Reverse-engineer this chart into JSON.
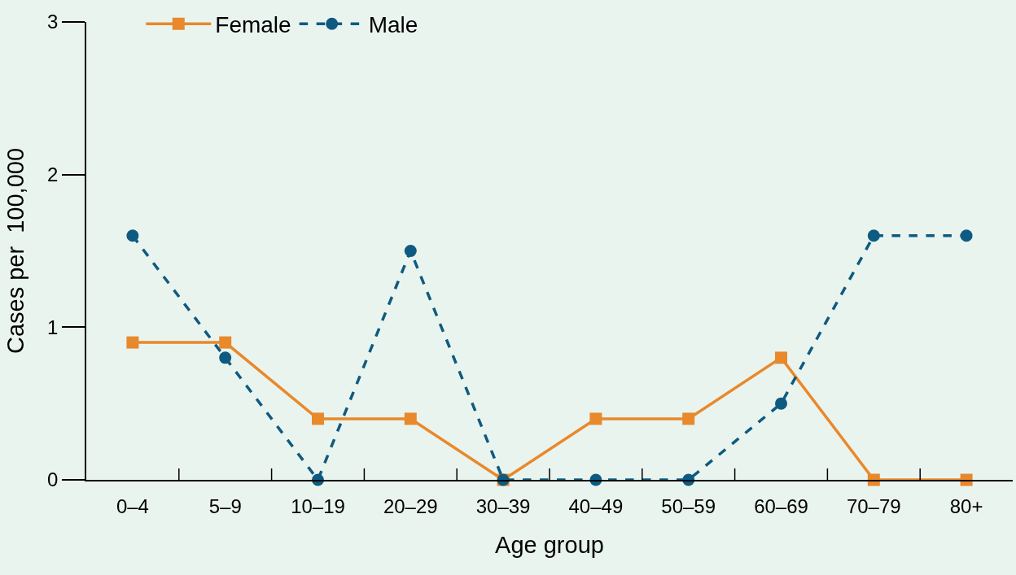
{
  "chart_data": {
    "type": "line",
    "xlabel": "Age group",
    "ylabel": "Cases per  100,000",
    "categories": [
      "0–4",
      "5–9",
      "10–19",
      "20–29",
      "30–39",
      "40–49",
      "50–59",
      "60–69",
      "70–79",
      "80+"
    ],
    "series": [
      {
        "name": "Female",
        "color": "#e8892b",
        "marker": "square",
        "line_style": "solid",
        "values": [
          0.9,
          0.9,
          0.4,
          0.4,
          0,
          0.4,
          0.4,
          0.8,
          0,
          0
        ]
      },
      {
        "name": "Male",
        "color": "#0f5a80",
        "marker": "circle",
        "line_style": "dashed",
        "values": [
          1.6,
          0.8,
          0,
          1.5,
          0,
          0,
          0,
          0.5,
          1.6,
          1.6
        ]
      }
    ],
    "ylim": [
      0,
      3
    ],
    "yticks": [
      0,
      1,
      2,
      3
    ],
    "grid": false,
    "legend": "top left"
  }
}
